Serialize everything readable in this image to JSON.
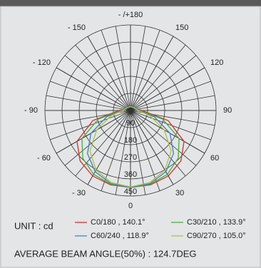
{
  "chart_data": {
    "type": "polar",
    "unit_label": "UNIT : cd",
    "annotation": "AVERAGE BEAM ANGLE(50%) : 124.7DEG",
    "xticks": [
      0,
      30,
      60,
      90,
      120,
      150,
      {
        "value": 180,
        "label": "- /+180"
      },
      {
        "value": -150,
        "label": "- 150"
      },
      {
        "value": -120,
        "label": "- 120"
      },
      {
        "value": -90,
        "label": "- 90"
      },
      {
        "value": -60,
        "label": "- 60"
      },
      {
        "value": -30,
        "label": "- 30"
      }
    ],
    "ylim": [
      0,
      450
    ],
    "yticks": [
      90,
      180,
      270,
      360,
      450
    ],
    "x": [
      -180,
      -165,
      -150,
      -135,
      -120,
      -105,
      -90,
      -75,
      -60,
      -45,
      -30,
      -15,
      0,
      15,
      30,
      45,
      60,
      75,
      90,
      105,
      120,
      135,
      150,
      165,
      180
    ],
    "series": [
      {
        "name": "C0/180 , 140.1°",
        "color": "#e02a20",
        "values": [
          20,
          20,
          20,
          22,
          25,
          30,
          60,
          205,
          325,
          375,
          398,
          405,
          405,
          405,
          398,
          375,
          325,
          205,
          60,
          30,
          25,
          22,
          20,
          20,
          20
        ]
      },
      {
        "name": "C30/210 , 133.9°",
        "color": "#3fb040",
        "values": [
          20,
          20,
          20,
          22,
          24,
          30,
          50,
          175,
          295,
          355,
          388,
          402,
          406,
          402,
          388,
          355,
          295,
          175,
          50,
          30,
          24,
          22,
          20,
          20,
          20
        ]
      },
      {
        "name": "C60/240 , 118.9°",
        "color": "#3a80d0",
        "values": [
          20,
          20,
          22,
          25,
          30,
          35,
          45,
          130,
          240,
          320,
          372,
          398,
          406,
          398,
          372,
          320,
          240,
          130,
          45,
          35,
          30,
          25,
          22,
          20,
          20
        ]
      },
      {
        "name": "C90/270 , 105.0°",
        "color": "#b5c030",
        "values": [
          20,
          20,
          20,
          22,
          25,
          30,
          40,
          105,
          205,
          302,
          362,
          392,
          402,
          392,
          362,
          302,
          205,
          105,
          40,
          30,
          25,
          22,
          20,
          20,
          20
        ]
      }
    ]
  }
}
